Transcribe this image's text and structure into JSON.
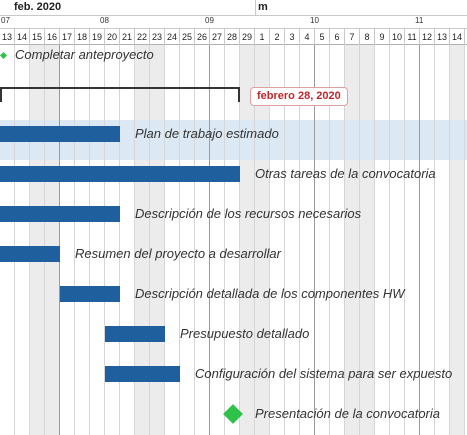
{
  "timeline": {
    "months": [
      {
        "label": "feb. 2020",
        "day_index": 0
      },
      {
        "label": "m",
        "day_index": 17
      }
    ],
    "weeks": [
      {
        "label": "07",
        "day_index": 0
      },
      {
        "label": "08",
        "day_index": 7
      },
      {
        "label": "09",
        "day_index": 14
      },
      {
        "label": "10",
        "day_index": 21
      },
      {
        "label": "11",
        "day_index": 28
      }
    ],
    "days": [
      "13",
      "14",
      "15",
      "16",
      "17",
      "18",
      "19",
      "20",
      "21",
      "22",
      "23",
      "24",
      "25",
      "26",
      "27",
      "28",
      "29",
      "1",
      "2",
      "3",
      "4",
      "5",
      "6",
      "7",
      "8",
      "9",
      "10",
      "11",
      "12",
      "13",
      "14"
    ],
    "weekend_indices": [
      2,
      3,
      9,
      10,
      16,
      17,
      23,
      24,
      30
    ]
  },
  "summary": {
    "start": 0,
    "end": 16,
    "date_badge": "febrero 28, 2020"
  },
  "tasks": [
    {
      "type": "milestone-small",
      "label": "Completar anteproyecto",
      "start": -0.3
    },
    {
      "type": "bar",
      "label": "Plan de trabajo estimado",
      "start": -1,
      "end": 8
    },
    {
      "type": "bar",
      "label": "Otras tareas de la convocatoria",
      "start": -1,
      "end": 16
    },
    {
      "type": "bar",
      "label": "Descripción de los recursos necesarios",
      "start": -1,
      "end": 8
    },
    {
      "type": "bar",
      "label": "Resumen del proyecto a desarrollar",
      "start": -1,
      "end": 4
    },
    {
      "type": "bar",
      "label": "Descripción detallada de los componentes HW",
      "start": 4,
      "end": 8
    },
    {
      "type": "bar",
      "label": "Presupuesto detallado",
      "start": 7,
      "end": 11
    },
    {
      "type": "bar",
      "label": "Configuración del sistema para ser expuesto",
      "start": 7,
      "end": 12
    },
    {
      "type": "milestone",
      "label": "Presentación de la convocatoria",
      "start": 15.5
    }
  ]
}
